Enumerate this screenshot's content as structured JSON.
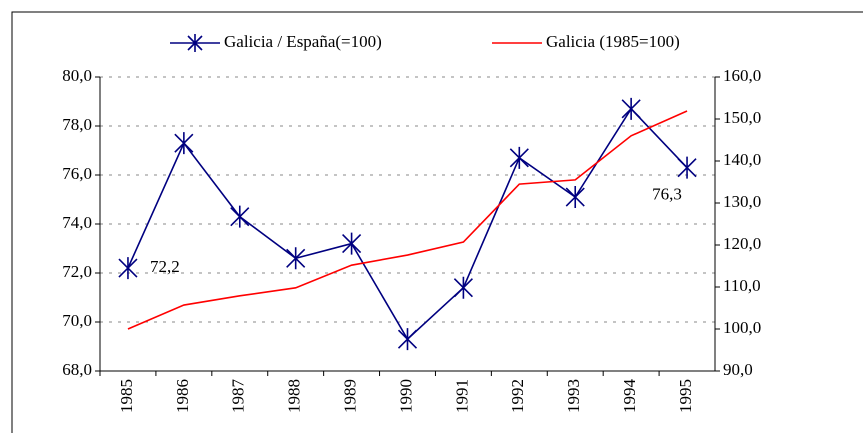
{
  "chart_data": {
    "type": "line",
    "categories": [
      "1985",
      "1986",
      "1987",
      "1988",
      "1989",
      "1990",
      "1991",
      "1992",
      "1993",
      "1994",
      "1995"
    ],
    "series": [
      {
        "name": "Galicia / España(=100)",
        "color": "#000080",
        "marker": "star",
        "values": [
          72.2,
          77.3,
          74.3,
          72.6,
          73.2,
          69.3,
          71.4,
          76.7,
          75.1,
          78.7,
          76.3
        ],
        "value_labels": [
          "72,2",
          null,
          null,
          null,
          null,
          null,
          null,
          null,
          null,
          null,
          "76,3"
        ]
      },
      {
        "name": "Galicia (1985=100)",
        "color": "#ff0000",
        "axis": "y2",
        "values": [
          100,
          105.7,
          107.9,
          109.8,
          115.2,
          117.6,
          120.7,
          134.5,
          135.5,
          146,
          151.9
        ]
      }
    ],
    "ylim": [
      68,
      80
    ],
    "yticks": [
      {
        "value": 68,
        "label": "68,0"
      },
      {
        "value": 70,
        "label": "70,0"
      },
      {
        "value": 72,
        "label": "72,0"
      },
      {
        "value": 74,
        "label": "74,0"
      },
      {
        "value": 76,
        "label": "76,0"
      },
      {
        "value": 78,
        "label": "78,0"
      },
      {
        "value": 80,
        "label": "80,0"
      }
    ],
    "y2lim": [
      90,
      160
    ],
    "y2ticks": [
      {
        "value": 90,
        "label": "90,0"
      },
      {
        "value": 100,
        "label": "100,0"
      },
      {
        "value": 110,
        "label": "110,0"
      },
      {
        "value": 120,
        "label": "120,0"
      },
      {
        "value": 130,
        "label": "130,0"
      },
      {
        "value": 140,
        "label": "140,0"
      },
      {
        "value": 150,
        "label": "150,0"
      },
      {
        "value": 160,
        "label": "160,0"
      }
    ],
    "grid": true,
    "legend": "top"
  }
}
